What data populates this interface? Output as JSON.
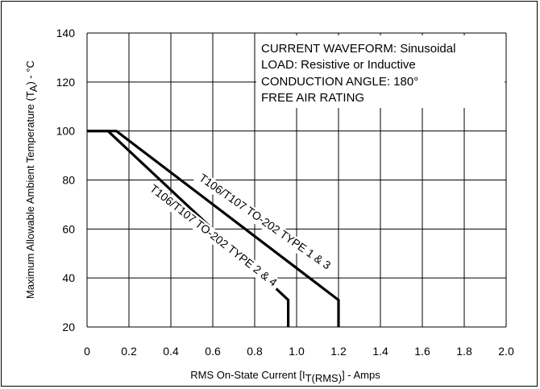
{
  "chart_data": {
    "type": "line",
    "xlabel": "RMS On-State Current [I",
    "xlabel_sub": "T(RMS)",
    "xlabel_tail": "] - Amps",
    "ylabel": "Maximum Allowable Ambient Temperature (T",
    "ylabel_sub": "A",
    "ylabel_tail": ") - °C",
    "xlim": [
      0,
      2.0
    ],
    "ylim": [
      20,
      140
    ],
    "x_ticks": [
      "0",
      "0.2",
      "0.4",
      "0.6",
      "0.8",
      "1.0",
      "1.2",
      "1.4",
      "1.6",
      "1.8",
      "2.0"
    ],
    "y_ticks": [
      "20",
      "40",
      "60",
      "80",
      "100",
      "120",
      "140"
    ],
    "grid": true,
    "annotations": [
      "CURRENT WAVEFORM: Sinusoidal",
      "LOAD: Resistive or Inductive",
      "CONDUCTION ANGLE: 180°",
      "FREE AIR RATING"
    ],
    "series": [
      {
        "name": "T106/T107 TO-202 TYPE 1 & 3",
        "points": [
          [
            0,
            100
          ],
          [
            0.14,
            100
          ],
          [
            1.2,
            31
          ],
          [
            1.2,
            20
          ]
        ]
      },
      {
        "name": "T106/T107 TO-202 TYPE 2 & 4",
        "points": [
          [
            0,
            100
          ],
          [
            0.1,
            100
          ],
          [
            0.96,
            31
          ],
          [
            0.96,
            20
          ]
        ]
      }
    ]
  }
}
